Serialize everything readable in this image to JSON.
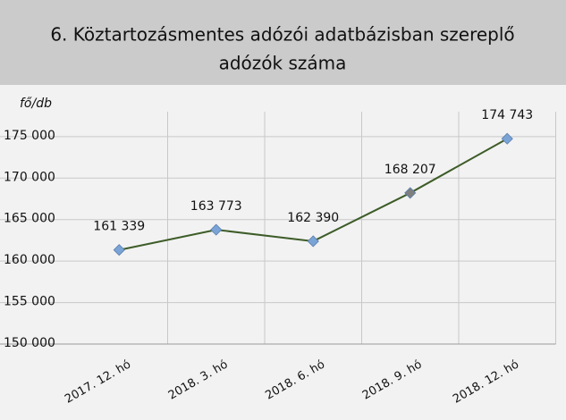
{
  "chart_data": {
    "type": "line",
    "title": "6. Köztartozásmentes adózói adatbázisban szereplő adózók száma",
    "y_label": "fő/db",
    "categories": [
      "2017. 12. hó",
      "2018. 3. hó",
      "2018. 6. hó",
      "2018. 9. hó",
      "2018. 12. hó"
    ],
    "values": [
      161339,
      163773,
      162390,
      168207,
      174743
    ],
    "value_labels": [
      "161 339",
      "163 773",
      "162 390",
      "168 207",
      "174 743"
    ],
    "color": "#3d5c28",
    "marker_colors": [
      "#7aa3d6",
      "#7aa3d6",
      "#7aa3d6",
      "#7f7f7f",
      "#7aa3d6"
    ],
    "ylim": [
      150000,
      178000
    ],
    "yticks": [
      {
        "value": 150000,
        "label": "150 000"
      },
      {
        "value": 155000,
        "label": "155 000"
      },
      {
        "value": 160000,
        "label": "160 000"
      },
      {
        "value": 165000,
        "label": "165 000"
      },
      {
        "value": 170000,
        "label": "170 000"
      },
      {
        "value": 175000,
        "label": "175 000"
      }
    ],
    "grid": true
  }
}
